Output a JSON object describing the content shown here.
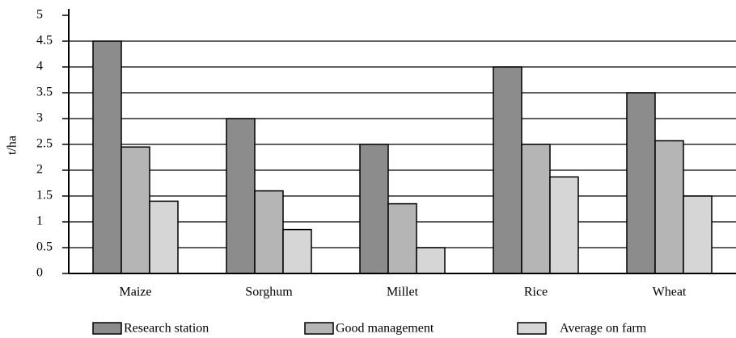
{
  "chart_data": {
    "type": "bar",
    "y_label": "t/ha",
    "categories": [
      "Maize",
      "Sorghum",
      "Millet",
      "Rice",
      "Wheat"
    ],
    "series": [
      {
        "name": "Research station",
        "color": "#8c8c8c",
        "values": [
          4.5,
          3.0,
          2.5,
          4.0,
          3.5
        ]
      },
      {
        "name": "Good management",
        "color": "#b5b5b5",
        "values": [
          2.45,
          1.6,
          1.35,
          2.5,
          2.57
        ]
      },
      {
        "name": "Average on farm",
        "color": "#d6d6d6",
        "values": [
          1.4,
          0.85,
          0.5,
          1.87,
          1.5
        ]
      }
    ],
    "ylim": [
      0,
      5
    ],
    "yticks": [
      0,
      0.5,
      1,
      1.5,
      2,
      2.5,
      3,
      3.5,
      4,
      4.5,
      5
    ],
    "grid": true,
    "legend": "bottom"
  }
}
